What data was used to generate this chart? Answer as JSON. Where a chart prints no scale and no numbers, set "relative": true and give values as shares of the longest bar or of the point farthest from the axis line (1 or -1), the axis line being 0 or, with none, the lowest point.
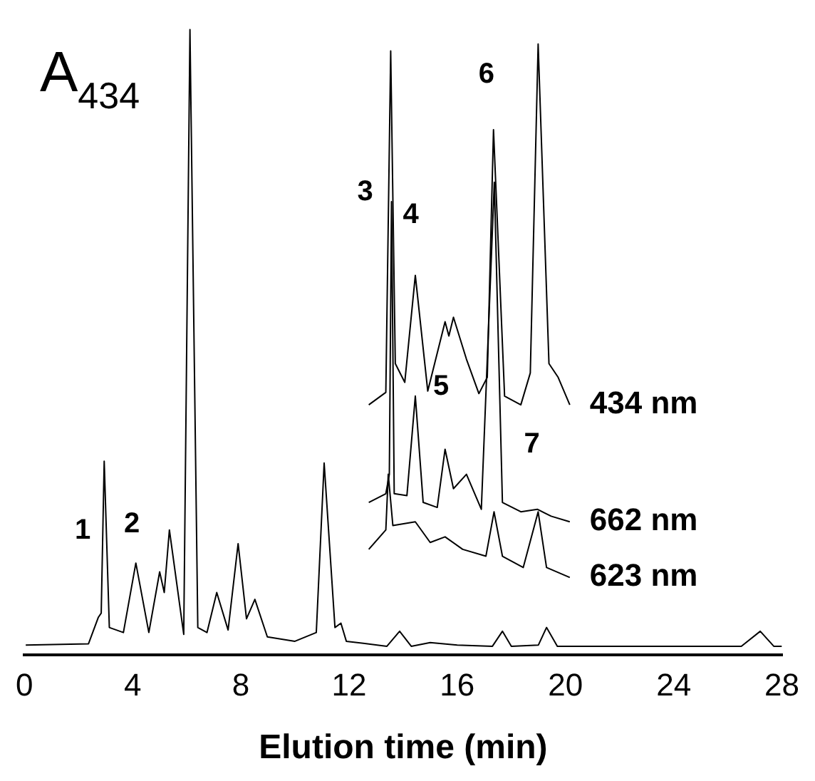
{
  "chart_data": {
    "type": "line",
    "relative": true,
    "ylabel": "A$_{434}$",
    "xlabel": "Elution time (min)",
    "xlim": [
      0,
      28
    ],
    "xticks": [
      0,
      4,
      8,
      12,
      16,
      20,
      24,
      28
    ],
    "grid": false,
    "legend": false,
    "marker": "none",
    "line_style": "solid",
    "series": [
      {
        "color": "#000000",
        "x": [
          0.05,
          2.37,
          2.73,
          2.84,
          2.95,
          3.14,
          3.66,
          4.12,
          4.6,
          5.0,
          5.17,
          5.36,
          5.89,
          6.12,
          6.41,
          6.75,
          7.11,
          7.53,
          7.9,
          8.21,
          8.52,
          8.98,
          10.0,
          10.79,
          11.08,
          11.48,
          11.7,
          11.9,
          13.4,
          13.87,
          14.3,
          15.0,
          16.0,
          17.3,
          17.67,
          18.0,
          19.0,
          19.3,
          19.7,
          22.0,
          26.5,
          27.2,
          27.7,
          28.0
        ],
        "values": [
          0.016,
          0.018,
          0.06,
          0.067,
          0.31,
          0.044,
          0.036,
          0.147,
          0.036,
          0.133,
          0.1,
          0.2,
          0.033,
          1.0,
          0.044,
          0.036,
          0.1,
          0.04,
          0.178,
          0.058,
          0.089,
          0.029,
          0.022,
          0.036,
          0.307,
          0.044,
          0.051,
          0.022,
          0.014,
          0.038,
          0.014,
          0.02,
          0.016,
          0.014,
          0.038,
          0.014,
          0.016,
          0.044,
          0.014,
          0.014,
          0.014,
          0.038,
          0.014,
          0.014
        ]
      },
      {
        "name": "434 nm",
        "color": "#000000",
        "x": [
          12.73,
          13.36,
          13.54,
          13.71,
          14.06,
          14.45,
          14.91,
          15.55,
          15.69,
          15.86,
          16.34,
          16.8,
          17.11,
          17.34,
          17.75,
          18.35,
          18.7,
          18.99,
          19.39,
          19.73,
          20.16
        ],
        "values": [
          0.4,
          0.42,
          0.966,
          0.466,
          0.436,
          0.607,
          0.422,
          0.533,
          0.51,
          0.54,
          0.473,
          0.418,
          0.444,
          0.84,
          0.414,
          0.4,
          0.451,
          0.977,
          0.466,
          0.444,
          0.4
        ]
      },
      {
        "name": "662 nm",
        "color": "#000000",
        "x": [
          12.73,
          13.36,
          13.49,
          13.57,
          13.67,
          14.14,
          14.45,
          14.74,
          15.26,
          15.55,
          15.86,
          16.34,
          16.89,
          17.37,
          17.67,
          18.35,
          18.96,
          19.47,
          20.16
        ],
        "values": [
          0.244,
          0.258,
          0.289,
          0.725,
          0.258,
          0.255,
          0.414,
          0.244,
          0.236,
          0.329,
          0.266,
          0.289,
          0.233,
          0.756,
          0.244,
          0.229,
          0.233,
          0.222,
          0.213
        ]
      },
      {
        "name": "623 nm",
        "color": "#000000",
        "x": [
          12.73,
          13.36,
          13.45,
          13.62,
          14.45,
          15.0,
          15.55,
          16.2,
          17.06,
          17.36,
          17.67,
          18.44,
          18.99,
          19.3,
          20.16
        ],
        "values": [
          0.169,
          0.2,
          0.289,
          0.207,
          0.213,
          0.18,
          0.189,
          0.169,
          0.158,
          0.229,
          0.158,
          0.14,
          0.229,
          0.14,
          0.124
        ]
      }
    ],
    "annotations": [
      "1",
      "2",
      "3",
      "4",
      "5",
      "6",
      "7"
    ]
  }
}
